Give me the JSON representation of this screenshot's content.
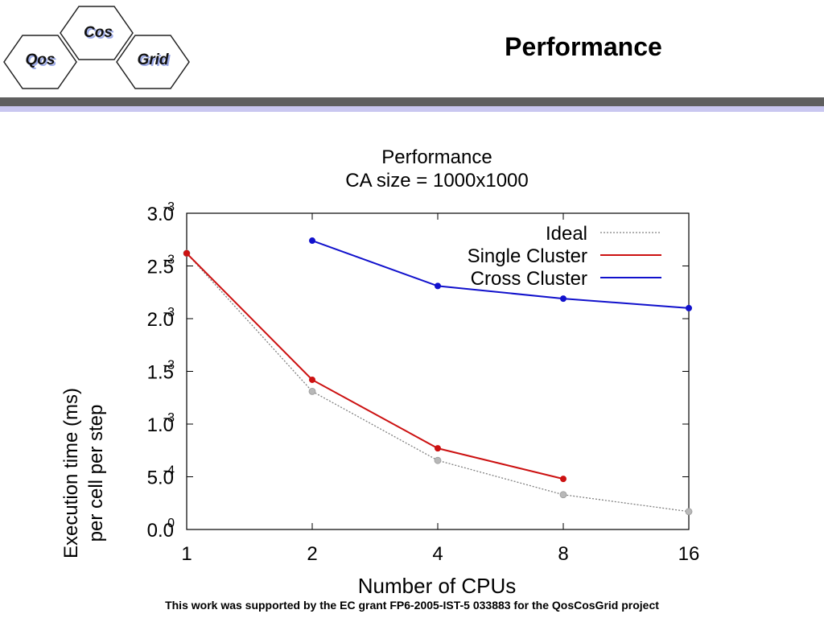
{
  "slide": {
    "title": "Performance",
    "footer": "This work was supported by the EC grant FP6-2005-IST-5 033883 for the QosCosGrid project"
  },
  "logo": {
    "cells": [
      "Qos",
      "Cos",
      "Grid"
    ]
  },
  "colors": {
    "ideal": "#808080",
    "single": "#cc1111",
    "cross": "#1111cc",
    "header_bar": "#5f5f5f",
    "header_accent": "#c9c7f0"
  },
  "chart_data": {
    "type": "line",
    "title": "Performance",
    "subtitle": "CA size = 1000x1000",
    "xlabel": "Number of CPUs",
    "ylabel": [
      "Execution time (ms)",
      "per cell per step"
    ],
    "x_scale": "log2",
    "categories": [
      1,
      2,
      4,
      8,
      16
    ],
    "ylim": [
      0,
      0.003
    ],
    "y_ticks": [
      {
        "value": 0.0,
        "mantissa": "0.0",
        "exponent": "0"
      },
      {
        "value": 0.0005,
        "mantissa": "5.0",
        "exponent": "-4"
      },
      {
        "value": 0.001,
        "mantissa": "1.0",
        "exponent": "-3"
      },
      {
        "value": 0.0015,
        "mantissa": "1.5",
        "exponent": "-3"
      },
      {
        "value": 0.002,
        "mantissa": "2.0",
        "exponent": "-3"
      },
      {
        "value": 0.0025,
        "mantissa": "2.5",
        "exponent": "-3"
      },
      {
        "value": 0.003,
        "mantissa": "3.0",
        "exponent": "-3"
      }
    ],
    "legend_position": "top-right",
    "series": [
      {
        "name": "Ideal",
        "style": "dotted",
        "color": "#808080",
        "x": [
          1,
          2,
          4,
          8,
          16
        ],
        "y": [
          0.00262,
          0.00131,
          0.000655,
          0.00033,
          0.00017
        ]
      },
      {
        "name": "Single Cluster",
        "style": "solid",
        "color": "#cc1111",
        "x": [
          1,
          2,
          4,
          8
        ],
        "y": [
          0.00262,
          0.00142,
          0.00077,
          0.00048
        ]
      },
      {
        "name": "Cross Cluster",
        "style": "solid",
        "color": "#1111cc",
        "x": [
          2,
          4,
          8,
          16
        ],
        "y": [
          0.00274,
          0.00231,
          0.00219,
          0.0021
        ]
      }
    ]
  }
}
